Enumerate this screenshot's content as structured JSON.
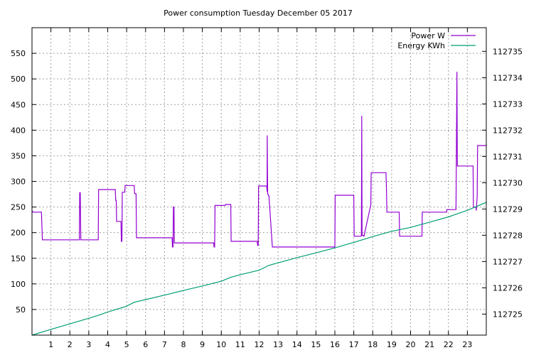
{
  "chart_data": {
    "type": "line",
    "title": "Power consumption Tuesday December 05 2017",
    "xlabel": "",
    "ylabel": "",
    "xlim": [
      0,
      24
    ],
    "ylim": [
      0,
      600
    ],
    "y2lim": [
      112724.2,
      112735.9
    ],
    "x_ticks": [
      1,
      2,
      3,
      4,
      5,
      6,
      7,
      8,
      9,
      10,
      11,
      12,
      13,
      14,
      15,
      16,
      17,
      18,
      19,
      20,
      21,
      22,
      23
    ],
    "y_ticks": [
      50,
      100,
      150,
      200,
      250,
      300,
      350,
      400,
      450,
      500,
      550
    ],
    "y2_ticks": [
      112725,
      112726,
      112727,
      112728,
      112729,
      112730,
      112731,
      112732,
      112733,
      112734,
      112735
    ],
    "grid": true,
    "legend_position": "top-right",
    "colors": {
      "power": "#9400d3",
      "energy": "#009e73"
    },
    "series": [
      {
        "name": "Power W",
        "axis": "left",
        "x": [
          0,
          0.05,
          0.5,
          0.55,
          2.5,
          2.52,
          2.55,
          2.58,
          3.5,
          3.52,
          4.4,
          4.42,
          4.45,
          4.47,
          4.7,
          4.72,
          4.75,
          4.77,
          4.9,
          4.92,
          5.4,
          5.42,
          5.5,
          5.52,
          7.4,
          7.42,
          7.45,
          7.47,
          7.5,
          7.52,
          7.55,
          7.57,
          9.6,
          9.62,
          9.65,
          9.67,
          10.2,
          10.22,
          10.5,
          10.52,
          11.9,
          11.92,
          11.95,
          11.97,
          12.4,
          12.42,
          12.43,
          12.45,
          12.47,
          12.5,
          12.52,
          12.7,
          12.72,
          16.0,
          16.02,
          17.0,
          17.02,
          17.4,
          17.42,
          17.44,
          17.5,
          17.52,
          17.54,
          17.9,
          17.92,
          17.95,
          18.7,
          18.72,
          18.75,
          19.4,
          19.42,
          19.9,
          19.92,
          20.6,
          20.62,
          21.9,
          21.92,
          22.4,
          22.42,
          22.45,
          22.47,
          22.5,
          22.52,
          23.3,
          23.32,
          23.45,
          23.47,
          23.52,
          23.54,
          23.6,
          23.62,
          24
        ],
        "values": [
          243,
          240,
          240,
          186,
          186,
          278,
          278,
          186,
          186,
          284,
          284,
          263,
          263,
          222,
          222,
          183,
          183,
          279,
          279,
          292,
          292,
          276,
          276,
          190,
          190,
          172,
          172,
          250,
          250,
          180,
          180,
          180,
          180,
          172,
          172,
          253,
          253,
          255,
          255,
          183,
          183,
          175,
          175,
          291,
          291,
          280,
          390,
          275,
          275,
          272,
          272,
          172,
          172,
          172,
          273,
          273,
          193,
          193,
          428,
          195,
          195,
          193,
          193,
          255,
          317,
          317,
          317,
          298,
          240,
          240,
          193,
          193,
          193,
          193,
          240,
          240,
          245,
          245,
          348,
          514,
          330,
          330,
          330,
          330,
          250,
          250,
          243,
          270,
          370,
          370,
          370,
          370
        ]
      },
      {
        "name": "Energy KWh",
        "axis": "right",
        "x": [
          0,
          1,
          2,
          3,
          3.5,
          4,
          5,
          5.4,
          6,
          7,
          8,
          9,
          10,
          10.5,
          11,
          12,
          12.5,
          13,
          14,
          15,
          16,
          17,
          18,
          19,
          20,
          21,
          22,
          23,
          24
        ],
        "values": [
          112724.2,
          112724.42,
          112724.63,
          112724.84,
          112724.95,
          112725.08,
          112725.3,
          112725.45,
          112725.55,
          112725.72,
          112725.9,
          112726.07,
          112726.25,
          112726.4,
          112726.5,
          112726.67,
          112726.85,
          112726.95,
          112727.15,
          112727.33,
          112727.52,
          112727.73,
          112727.95,
          112728.15,
          112728.3,
          112728.5,
          112728.7,
          112728.95,
          112729.25
        ]
      }
    ]
  }
}
